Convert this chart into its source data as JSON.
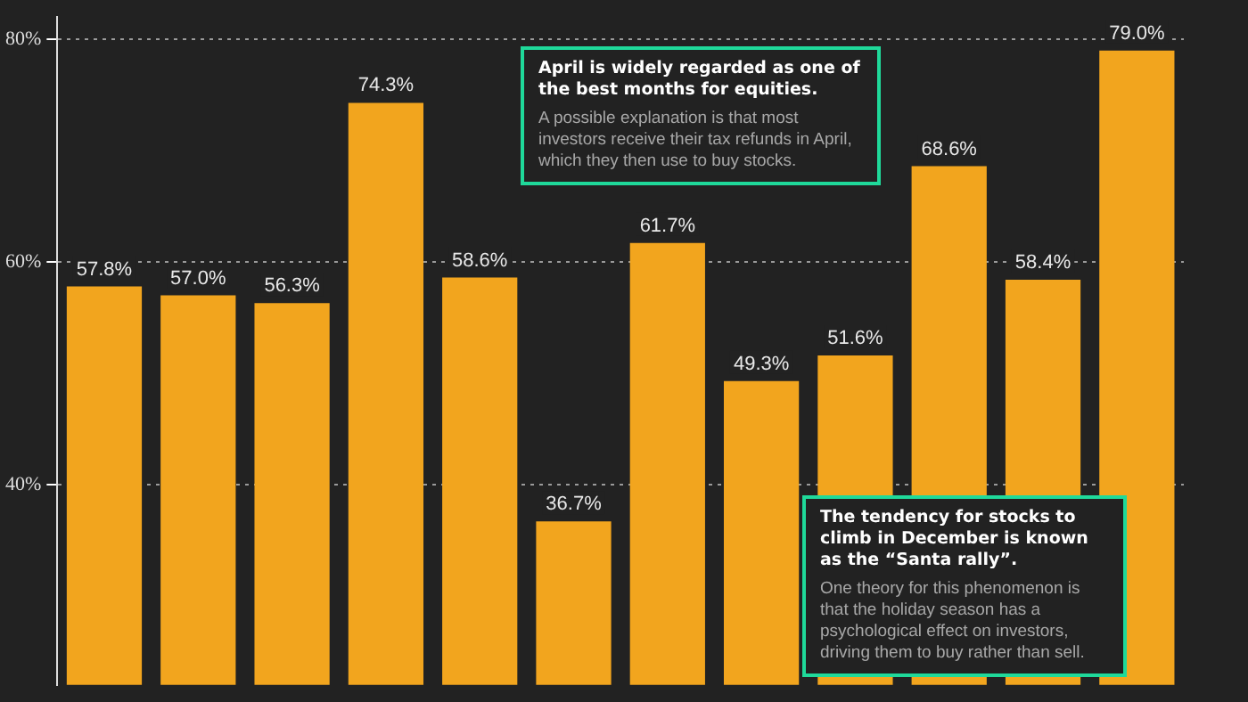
{
  "chart_data": {
    "type": "bar",
    "categories": [
      null,
      null,
      null,
      null,
      null,
      null,
      null,
      null,
      null,
      null,
      null,
      null
    ],
    "values": [
      57.8,
      57.0,
      56.3,
      74.3,
      58.6,
      36.7,
      61.7,
      49.3,
      51.6,
      68.6,
      58.4,
      79.0
    ],
    "value_labels": [
      "57.8%",
      "57.0%",
      "56.3%",
      "74.3%",
      "58.6%",
      "36.7%",
      "61.7%",
      "49.3%",
      "51.6%",
      "68.6%",
      "58.4%",
      "79.0%"
    ],
    "color": "#f2a51e",
    "ylim": [
      22,
      82
    ],
    "yticks": [
      {
        "value": 40,
        "label": "40%"
      },
      {
        "value": 60,
        "label": "60%"
      },
      {
        "value": 80,
        "label": "80%"
      }
    ],
    "grid": "y",
    "annotations": [
      "April is widely regarded as one of the best months for equities.",
      "A possible explanation is that most investors receive their tax refunds in April, which they then use to buy stocks.",
      "The tendency for stocks to climb in December is known as the “Santa rally”.",
      "One theory for this phenomenon is that the holiday season has a psychological effect on investors, driving them to buy rather than sell."
    ]
  }
}
